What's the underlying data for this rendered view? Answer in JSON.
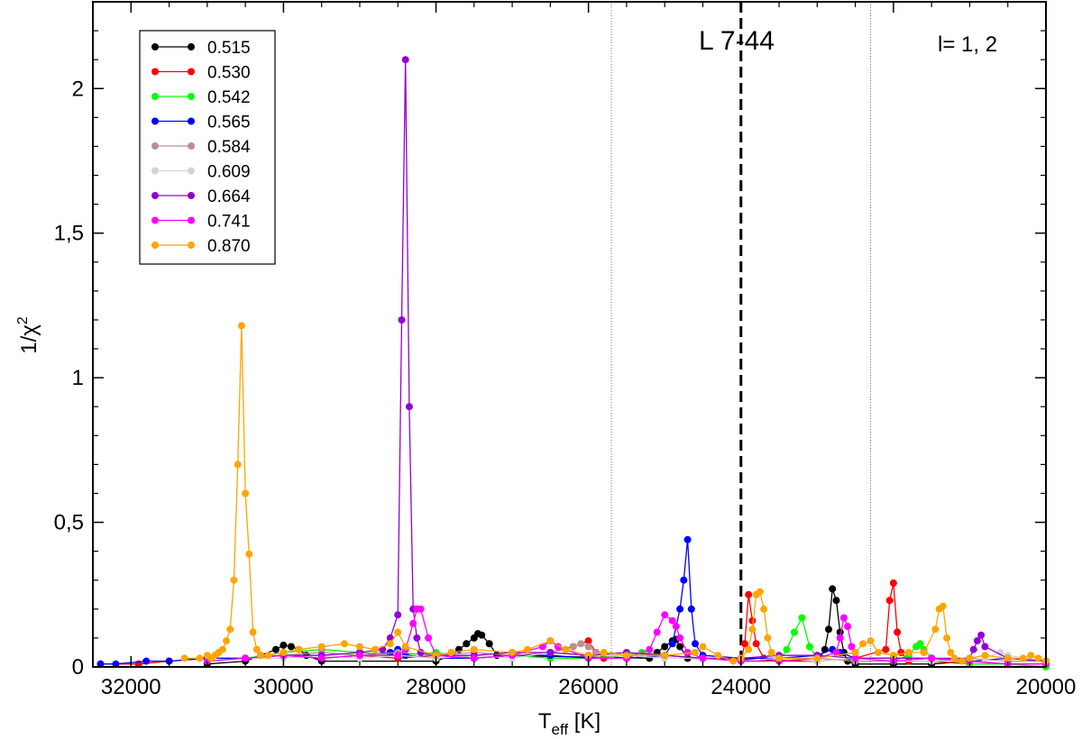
{
  "chart_data": {
    "type": "scatter",
    "title": "",
    "xlabel": "T",
    "xlabel_sub": "eff",
    "xlabel_unit": "[K]",
    "ylabel": "1/χ",
    "ylabel_sup": "2",
    "xlim": [
      32500,
      20000
    ],
    "ylim": [
      0,
      2.3
    ],
    "x_reversed": true,
    "x_ticks": [
      32000,
      30000,
      28000,
      26000,
      24000,
      22000,
      20000
    ],
    "x_tick_labels": [
      "32000",
      "30000",
      "28000",
      "26000",
      "24000",
      "22000",
      "20000"
    ],
    "y_ticks": [
      0,
      0.5,
      1,
      1.5,
      2
    ],
    "y_tick_labels": [
      "0",
      "0,5",
      "1",
      "1,5",
      "2"
    ],
    "grid": false,
    "legend_position": "top-left",
    "annotations": [
      {
        "text": "L 7-44"
      },
      {
        "text": "l= 1, 2"
      }
    ],
    "vertical_lines": [
      {
        "x": 24000,
        "style": "dashed"
      },
      {
        "x": 25700,
        "style": "dotted"
      },
      {
        "x": 22300,
        "style": "dotted"
      }
    ],
    "series": [
      {
        "name": "0.515",
        "color": "#000000",
        "x": [
          31000,
          30500,
          30300,
          30100,
          30000,
          29900,
          29800,
          29700,
          29500,
          28000,
          27800,
          27700,
          27600,
          27500,
          27450,
          27400,
          27300,
          27200,
          25200,
          25100,
          25000,
          24900,
          24850,
          24800,
          24700,
          23000,
          22900,
          22850,
          22800,
          22750,
          22700,
          22650,
          22600,
          22500,
          22000,
          21500,
          21000,
          20500,
          20000
        ],
        "y": [
          0.01,
          0.02,
          0.04,
          0.06,
          0.075,
          0.07,
          0.06,
          0.04,
          0.02,
          0.02,
          0.04,
          0.06,
          0.08,
          0.1,
          0.115,
          0.11,
          0.08,
          0.04,
          0.03,
          0.05,
          0.07,
          0.09,
          0.095,
          0.07,
          0.03,
          0.02,
          0.06,
          0.13,
          0.27,
          0.23,
          0.12,
          0.05,
          0.02,
          0.01,
          0.01,
          0.01,
          0.02,
          0.01,
          0.01
        ]
      },
      {
        "name": "0.530",
        "color": "#ff0000",
        "x": [
          32400,
          31900,
          31500,
          31000,
          30500,
          30000,
          29500,
          29000,
          28500,
          28000,
          27500,
          27000,
          26500,
          26200,
          26000,
          25900,
          25800,
          25500,
          25000,
          24500,
          24000,
          23950,
          23900,
          23850,
          23800,
          23700,
          23500,
          23000,
          22500,
          22100,
          22050,
          22000,
          21950,
          21900,
          21800,
          21500,
          21000,
          20500,
          20000
        ],
        "y": [
          0.01,
          0.01,
          0.02,
          0.03,
          0.03,
          0.04,
          0.03,
          0.04,
          0.03,
          0.04,
          0.03,
          0.04,
          0.05,
          0.07,
          0.09,
          0.05,
          0.03,
          0.03,
          0.04,
          0.03,
          0.02,
          0.08,
          0.25,
          0.16,
          0.08,
          0.03,
          0.02,
          0.02,
          0.03,
          0.06,
          0.23,
          0.29,
          0.12,
          0.05,
          0.02,
          0.02,
          0.01,
          0.01,
          0.01
        ]
      },
      {
        "name": "0.542",
        "color": "#00ff00",
        "x": [
          31000,
          30500,
          30000,
          29500,
          29000,
          28500,
          28000,
          27500,
          27000,
          26500,
          26000,
          25500,
          25300,
          25000,
          24500,
          24000,
          23500,
          23400,
          23300,
          23200,
          23100,
          23000,
          22500,
          22000,
          21800,
          21700,
          21650,
          21600,
          21500,
          21000,
          20500,
          20000
        ],
        "y": [
          0.02,
          0.03,
          0.05,
          0.06,
          0.05,
          0.04,
          0.05,
          0.03,
          0.04,
          0.03,
          0.03,
          0.04,
          0.05,
          0.04,
          0.03,
          0.02,
          0.02,
          0.06,
          0.12,
          0.17,
          0.07,
          0.03,
          0.02,
          0.02,
          0.04,
          0.07,
          0.08,
          0.06,
          0.03,
          0.01,
          0.01,
          0.0
        ]
      },
      {
        "name": "0.565",
        "color": "#0000ff",
        "x": [
          32400,
          32200,
          31800,
          31500,
          31000,
          30500,
          30000,
          29500,
          29000,
          28600,
          28500,
          28400,
          28000,
          27500,
          27000,
          26500,
          26000,
          25500,
          25000,
          24900,
          24800,
          24750,
          24700,
          24650,
          24600,
          24500,
          24000,
          23500,
          23000,
          22800,
          22700,
          22500,
          22000,
          21500,
          21000,
          20500,
          20000
        ],
        "y": [
          0.01,
          0.01,
          0.02,
          0.02,
          0.03,
          0.03,
          0.04,
          0.03,
          0.04,
          0.05,
          0.06,
          0.04,
          0.03,
          0.03,
          0.04,
          0.04,
          0.03,
          0.03,
          0.04,
          0.08,
          0.2,
          0.3,
          0.44,
          0.2,
          0.08,
          0.04,
          0.03,
          0.03,
          0.04,
          0.06,
          0.05,
          0.03,
          0.03,
          0.03,
          0.02,
          0.03,
          0.02
        ]
      },
      {
        "name": "0.584",
        "color": "#bc8f8f",
        "x": [
          31000,
          30500,
          30000,
          29500,
          29000,
          28500,
          28000,
          27500,
          27000,
          26500,
          26300,
          26200,
          26100,
          26000,
          25900,
          25700,
          25500,
          25000,
          24500,
          24000,
          23500,
          23000,
          22500,
          22000,
          21500,
          21000,
          20500,
          20000
        ],
        "y": [
          0.02,
          0.03,
          0.04,
          0.05,
          0.04,
          0.05,
          0.04,
          0.05,
          0.04,
          0.05,
          0.06,
          0.07,
          0.08,
          0.07,
          0.05,
          0.04,
          0.04,
          0.03,
          0.03,
          0.02,
          0.03,
          0.03,
          0.02,
          0.02,
          0.02,
          0.03,
          0.02,
          0.02
        ]
      },
      {
        "name": "0.609",
        "color": "#d3d3d3",
        "x": [
          31000,
          30500,
          30000,
          29500,
          29000,
          28500,
          28000,
          27500,
          27000,
          26500,
          26000,
          25500,
          25000,
          24500,
          24000,
          23500,
          23000,
          22500,
          22000,
          21500,
          21000,
          20800,
          20600,
          20500,
          20300,
          20000
        ],
        "y": [
          0.02,
          0.03,
          0.03,
          0.04,
          0.03,
          0.04,
          0.03,
          0.04,
          0.03,
          0.05,
          0.04,
          0.04,
          0.03,
          0.03,
          0.02,
          0.03,
          0.02,
          0.03,
          0.02,
          0.02,
          0.02,
          0.03,
          0.05,
          0.04,
          0.03,
          0.02
        ]
      },
      {
        "name": "0.664",
        "color": "#9400d3",
        "x": [
          30500,
          30000,
          29500,
          29000,
          28700,
          28600,
          28500,
          28450,
          28400,
          28350,
          28300,
          28250,
          28200,
          28000,
          27500,
          27000,
          26500,
          26000,
          25500,
          25000,
          24500,
          24000,
          23500,
          23000,
          22500,
          22000,
          21500,
          21000,
          20950,
          20900,
          20850,
          20800,
          20500,
          20000
        ],
        "y": [
          0.03,
          0.04,
          0.04,
          0.05,
          0.06,
          0.1,
          0.18,
          1.2,
          2.1,
          0.9,
          0.2,
          0.1,
          0.05,
          0.04,
          0.04,
          0.05,
          0.05,
          0.04,
          0.05,
          0.04,
          0.03,
          0.03,
          0.04,
          0.04,
          0.03,
          0.03,
          0.03,
          0.03,
          0.06,
          0.09,
          0.11,
          0.07,
          0.03,
          0.02
        ]
      },
      {
        "name": "0.741",
        "color": "#ff00ff",
        "x": [
          31000,
          30500,
          30000,
          29500,
          29000,
          28500,
          28400,
          28300,
          28250,
          28200,
          28100,
          28000,
          27500,
          27000,
          26600,
          26500,
          26400,
          26000,
          25500,
          25200,
          25100,
          25000,
          24900,
          24850,
          24800,
          24700,
          24500,
          24000,
          23500,
          23000,
          22750,
          22700,
          22650,
          22600,
          22550,
          22500,
          22000,
          21500,
          21000,
          20500,
          20000
        ],
        "y": [
          0.02,
          0.03,
          0.04,
          0.03,
          0.04,
          0.04,
          0.06,
          0.15,
          0.2,
          0.2,
          0.1,
          0.04,
          0.03,
          0.04,
          0.07,
          0.09,
          0.07,
          0.03,
          0.03,
          0.06,
          0.12,
          0.18,
          0.16,
          0.14,
          0.1,
          0.05,
          0.03,
          0.02,
          0.02,
          0.03,
          0.05,
          0.1,
          0.17,
          0.14,
          0.07,
          0.03,
          0.02,
          0.03,
          0.02,
          0.01,
          0.01
        ]
      },
      {
        "name": "0.870",
        "color": "#ffa500",
        "x": [
          31300,
          31100,
          31000,
          30950,
          30900,
          30850,
          30800,
          30750,
          30700,
          30650,
          30600,
          30550,
          30500,
          30450,
          30400,
          30350,
          30300,
          30200,
          30000,
          29800,
          29500,
          29200,
          29000,
          28800,
          28600,
          28500,
          28400,
          28000,
          27800,
          27500,
          27000,
          26800,
          26500,
          26300,
          26000,
          25800,
          25500,
          25000,
          24600,
          24500,
          24300,
          24100,
          24000,
          23900,
          23850,
          23800,
          23750,
          23700,
          23650,
          23600,
          23500,
          23000,
          22500,
          22400,
          22300,
          22200,
          22000,
          21800,
          21600,
          21450,
          21400,
          21350,
          21300,
          21250,
          21200,
          21100,
          21000,
          20800,
          20500,
          20300,
          20200,
          20100,
          20000
        ],
        "y": [
          0.03,
          0.03,
          0.04,
          0.03,
          0.04,
          0.05,
          0.06,
          0.09,
          0.13,
          0.3,
          0.7,
          1.18,
          0.6,
          0.39,
          0.12,
          0.06,
          0.04,
          0.04,
          0.05,
          0.06,
          0.07,
          0.08,
          0.07,
          0.06,
          0.08,
          0.12,
          0.07,
          0.04,
          0.05,
          0.06,
          0.05,
          0.06,
          0.09,
          0.06,
          0.04,
          0.05,
          0.04,
          0.04,
          0.05,
          0.07,
          0.04,
          0.02,
          0.03,
          0.06,
          0.13,
          0.25,
          0.26,
          0.2,
          0.1,
          0.05,
          0.03,
          0.03,
          0.05,
          0.08,
          0.09,
          0.05,
          0.04,
          0.05,
          0.05,
          0.13,
          0.2,
          0.21,
          0.1,
          0.05,
          0.03,
          0.02,
          0.03,
          0.04,
          0.03,
          0.03,
          0.04,
          0.03,
          0.02
        ]
      }
    ]
  }
}
